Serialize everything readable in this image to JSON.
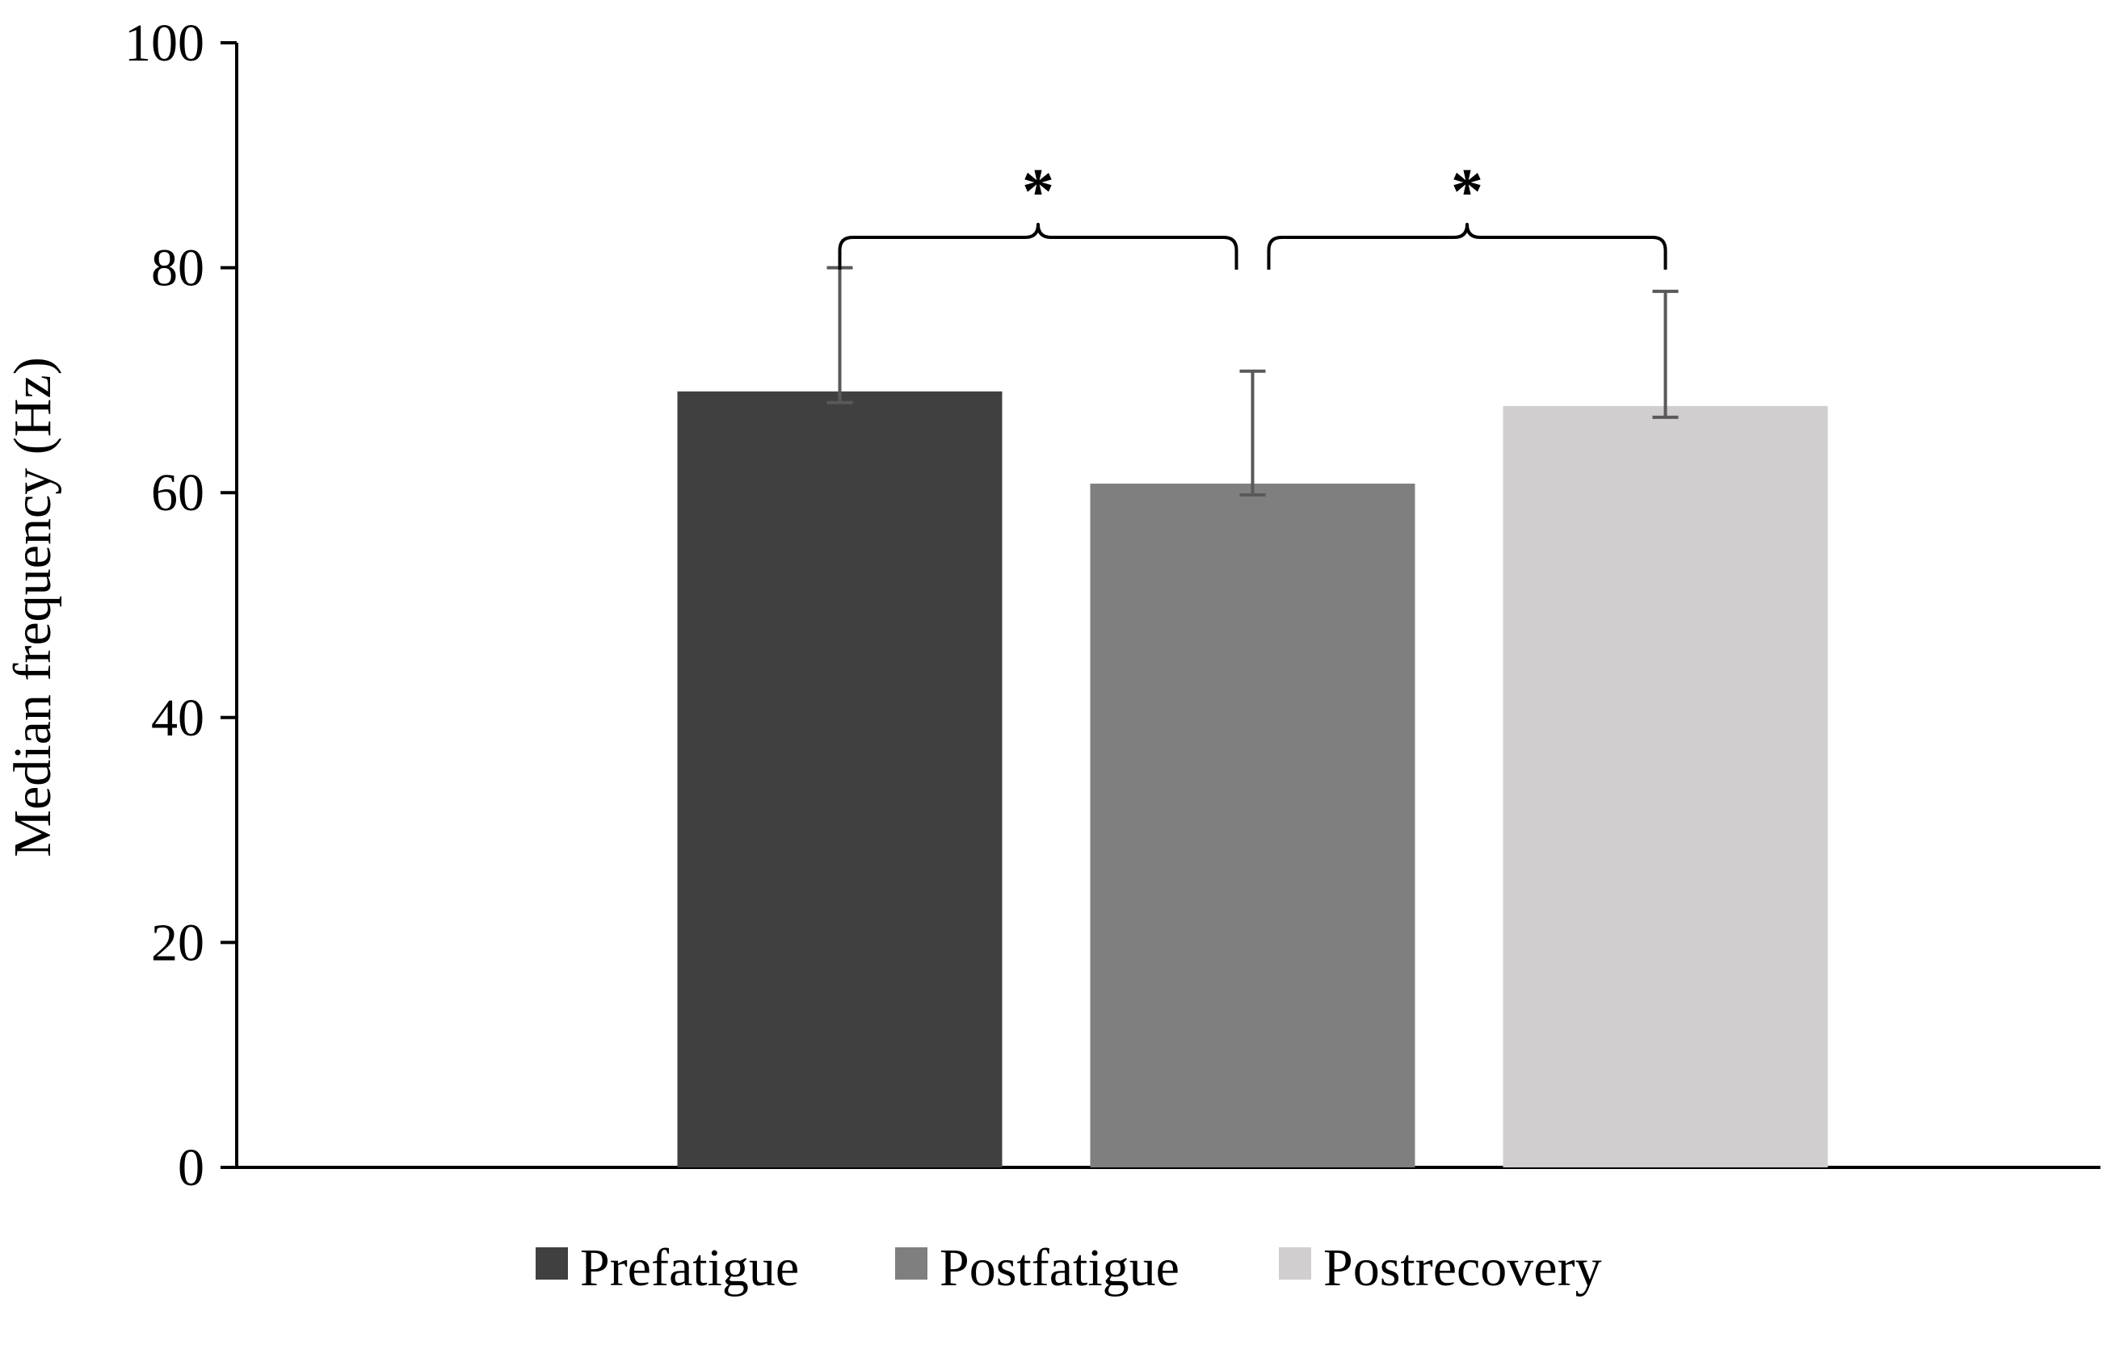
{
  "chart_data": {
    "type": "bar",
    "title": "",
    "xlabel": "",
    "ylabel": "Median frequency (Hz)",
    "ylim": [
      0,
      100
    ],
    "yticks": [
      0,
      20,
      40,
      60,
      80,
      100
    ],
    "grid": false,
    "legend_position": "bottom",
    "series": [
      {
        "name": "Prefatigue",
        "value": 69.0,
        "error": 11.0,
        "color": "#404040"
      },
      {
        "name": "Postfatigue",
        "value": 60.8,
        "error": 10.0,
        "color": "#7f7f7f"
      },
      {
        "name": "Postrecovery",
        "value": 67.7,
        "error": 10.2,
        "color": "#d0cece"
      }
    ],
    "significance": [
      {
        "from": 0,
        "to": 1,
        "label": "*",
        "level": 82.7
      },
      {
        "from": 1,
        "to": 2,
        "label": "*",
        "level": 82.7
      }
    ]
  }
}
